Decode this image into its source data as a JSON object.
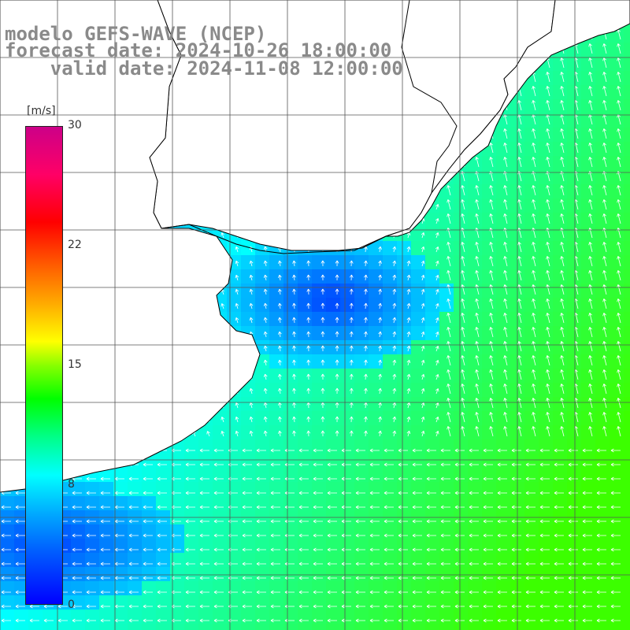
{
  "title": {
    "line1": "modelo GEFS-WAVE (NCEP)",
    "line2": "forecast date: 2024-10-26 18:00:00",
    "line3": "    valid date: 2024-11-08 12:00:00"
  },
  "colorbar": {
    "unit": "[m/s]",
    "ticks": [
      "30",
      "22",
      "15",
      "8",
      "0"
    ],
    "tick_values": [
      30,
      22,
      15,
      8,
      0
    ],
    "range": [
      0,
      30
    ]
  },
  "colors": {
    "low": "#0000ff",
    "mid": "#00ffff",
    "high": "#00ff00",
    "land": "#ffffff",
    "grid": "#555555",
    "arrow": "#ffffff",
    "title": "#8a8a8a"
  },
  "map": {
    "grid": true,
    "field": "wind speed with direction vectors"
  }
}
